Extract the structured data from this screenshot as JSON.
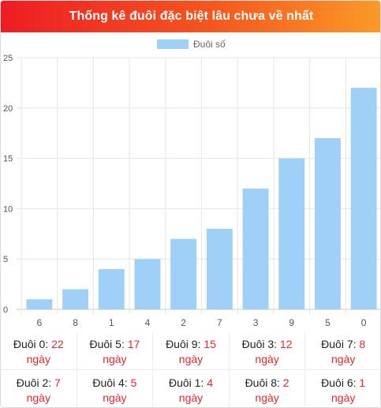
{
  "header": {
    "title": "Thống kê đuôi đặc biệt lâu chưa về nhất"
  },
  "colors": {
    "bar": "#9fd0f5",
    "legend_swatch": "#9fd0f5",
    "value_text": "#e8262b",
    "header_start": "#ee1c24",
    "header_end": "#fb9a28"
  },
  "chart_data": {
    "type": "bar",
    "categories": [
      "6",
      "8",
      "1",
      "4",
      "2",
      "7",
      "3",
      "9",
      "5",
      "0"
    ],
    "series": [
      {
        "name": "Đuôi số",
        "values": [
          1,
          2,
          4,
          5,
          7,
          8,
          12,
          15,
          17,
          22
        ]
      }
    ],
    "ylim": [
      0,
      25
    ],
    "yticks": [
      0,
      5,
      10,
      15,
      20,
      25
    ],
    "grid": true,
    "legend": "top-center",
    "title": "",
    "xlabel": "",
    "ylabel": ""
  },
  "stats": [
    {
      "label": "Đuôi 0:",
      "value": "22",
      "unit": "ngày"
    },
    {
      "label": "Đuôi 5:",
      "value": "17",
      "unit": "ngày"
    },
    {
      "label": "Đuôi 9:",
      "value": "15",
      "unit": "ngày"
    },
    {
      "label": "Đuôi 3:",
      "value": "12",
      "unit": "ngày"
    },
    {
      "label": "Đuôi 7:",
      "value": "8",
      "unit": "ngày"
    },
    {
      "label": "Đuôi 2:",
      "value": "7",
      "unit": "ngày"
    },
    {
      "label": "Đuôi 4:",
      "value": "5",
      "unit": "ngày"
    },
    {
      "label": "Đuôi 1:",
      "value": "4",
      "unit": "ngày"
    },
    {
      "label": "Đuôi 8:",
      "value": "2",
      "unit": "ngày"
    },
    {
      "label": "Đuôi 6:",
      "value": "1",
      "unit": "ngày"
    }
  ]
}
